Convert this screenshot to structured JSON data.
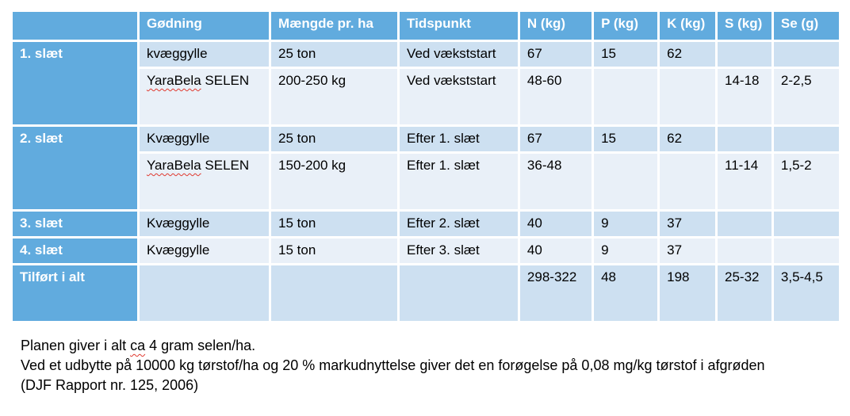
{
  "colors": {
    "header_blue": "#61ABDE",
    "band_dark": "#CDE0F1",
    "band_light": "#E9F0F8",
    "border_white": "#FFFFFF",
    "spellcheck_red": "#E0392F",
    "body_text": "#000000",
    "header_text": "#FFFFFF"
  },
  "table": {
    "columns": [
      "",
      "Gødning",
      "Mængde pr. ha",
      "Tidspunkt",
      "N (kg)",
      "P (kg)",
      "K (kg)",
      "S (kg)",
      "Se (g)"
    ],
    "rows": [
      {
        "stub": "1. slæt",
        "stub_span": 2,
        "shade": "dark",
        "tall": false,
        "cells": [
          "kvæggylle",
          "25 ton",
          "Ved vækststart",
          "67",
          "15",
          "62",
          "",
          ""
        ]
      },
      {
        "stub": null,
        "shade": "light",
        "tall": true,
        "wavy_word": "YaraBela",
        "cells": [
          "YaraBela SELEN",
          "200-250 kg",
          "Ved vækststart",
          "48-60",
          "",
          "",
          "14-18",
          "2-2,5"
        ]
      },
      {
        "stub": "2. slæt",
        "stub_span": 2,
        "shade": "dark",
        "tall": false,
        "cells": [
          "Kvæggylle",
          "25 ton",
          "Efter 1. slæt",
          "67",
          "15",
          "62",
          "",
          ""
        ]
      },
      {
        "stub": null,
        "shade": "light",
        "tall": true,
        "wavy_word": "YaraBela",
        "cells": [
          "YaraBela SELEN",
          "150-200 kg",
          "Efter 1. slæt",
          "36-48",
          "",
          "",
          "11-14",
          "1,5-2"
        ]
      },
      {
        "stub": "3. slæt",
        "stub_span": 1,
        "shade": "dark",
        "tall": false,
        "cells": [
          "Kvæggylle",
          "15 ton",
          "Efter 2. slæt",
          "40",
          "9",
          "37",
          "",
          ""
        ]
      },
      {
        "stub": "4. slæt",
        "stub_span": 1,
        "shade": "light",
        "tall": false,
        "cells": [
          "Kvæggylle",
          "15 ton",
          "Efter 3. slæt",
          "40",
          "9",
          "37",
          "",
          ""
        ]
      },
      {
        "stub": "Tilført i alt",
        "stub_span": 1,
        "shade": "dark",
        "tall": true,
        "cells": [
          "",
          "",
          "",
          "298-322",
          "48",
          "198",
          "25-32",
          "3,5-4,5"
        ]
      }
    ]
  },
  "footer": {
    "line1_pre": "Planen giver i alt ",
    "line1_wavy": "ca",
    "line1_post": " 4 gram selen/ha.",
    "line2": "Ved et udbytte på 10000 kg tørstof/ha og 20 % markudnyttelse giver det en forøgelse på 0,08 mg/kg tørstof i afgrøden",
    "line3": "(DJF Rapport nr. 125, 2006)"
  }
}
